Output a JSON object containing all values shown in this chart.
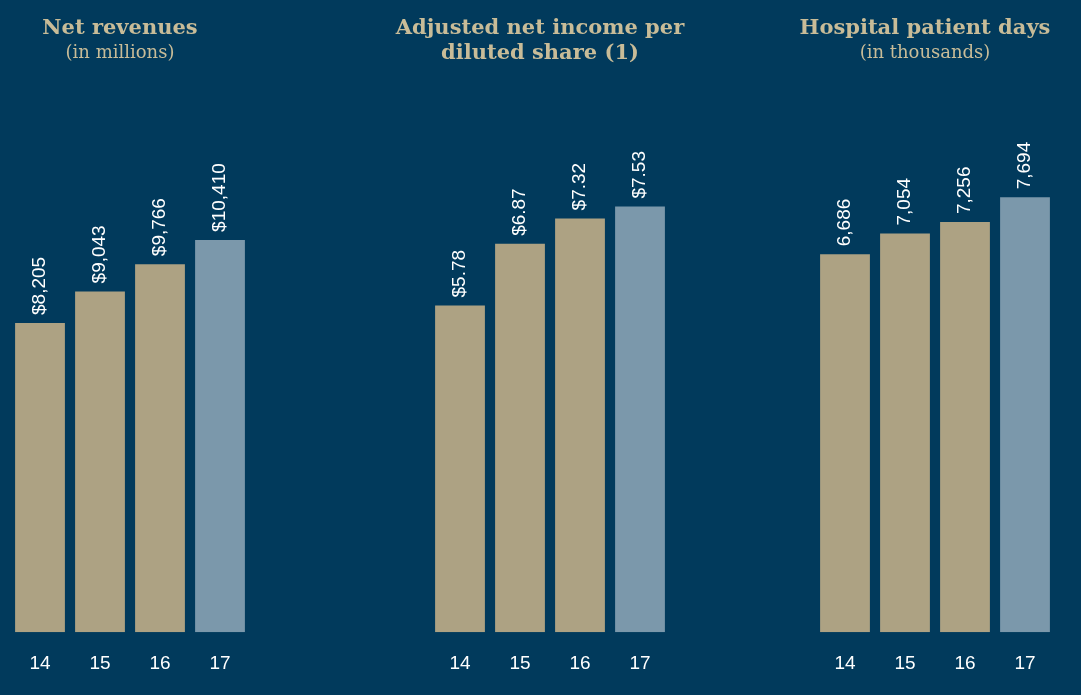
{
  "chart_data": [
    {
      "type": "bar",
      "title": "Net revenues",
      "subtitle": "(in millions)",
      "categories": [
        "14",
        "15",
        "16",
        "17"
      ],
      "values": [
        8205,
        9043,
        9766,
        10410
      ],
      "colors": [
        "#ada283",
        "#ada283",
        "#ada283",
        "#7b98ab"
      ],
      "value_labels": [
        "$8,205",
        "$9,043",
        "$9,766",
        "$10,410"
      ],
      "grid": false
    },
    {
      "type": "bar",
      "title": "Adjusted net income per diluted share (1)",
      "categories": [
        "14",
        "15",
        "16",
        "17"
      ],
      "values": [
        5.78,
        6.87,
        7.32,
        7.53
      ],
      "colors": [
        "#ada283",
        "#ada283",
        "#ada283",
        "#7b98ab"
      ],
      "value_labels": [
        "$5.78",
        "$6.87",
        "$7.32",
        "$7.53"
      ],
      "grid": false
    },
    {
      "type": "bar",
      "title": "Hospital patient days",
      "subtitle": "(in thousands)",
      "categories": [
        "14",
        "15",
        "16",
        "17"
      ],
      "values": [
        6686,
        7054,
        7256,
        7694
      ],
      "colors": [
        "#ada283",
        "#ada283",
        "#ada283",
        "#7b98ab"
      ],
      "value_labels": [
        "6,686",
        "7,054",
        "7,256",
        "7,694"
      ],
      "grid": false
    }
  ]
}
